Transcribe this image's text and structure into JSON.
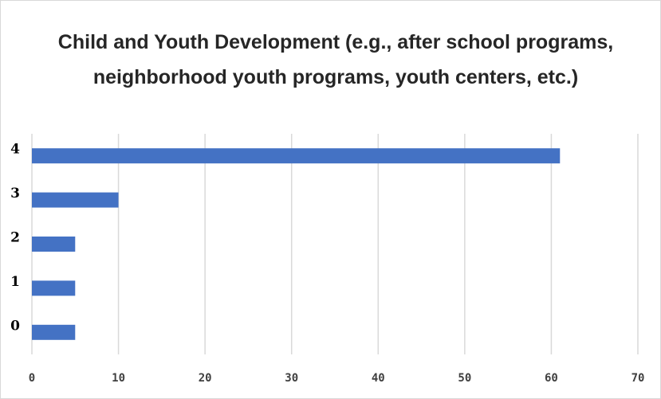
{
  "chart_data": {
    "type": "bar",
    "orientation": "horizontal",
    "title": "Child and Youth Development (e.g., after school programs, neighborhood youth programs, youth centers, etc.)",
    "categories": [
      "0",
      "1",
      "2",
      "3",
      "4"
    ],
    "values": [
      5,
      5,
      5,
      10,
      61
    ],
    "xlabel": "",
    "ylabel": "",
    "xlim": [
      0,
      70
    ],
    "xticks": [
      "0",
      "10",
      "20",
      "30",
      "40",
      "50",
      "60",
      "70"
    ],
    "grid": "vertical",
    "legend": "none",
    "bar_color": "#4472c4",
    "grid_color": "#d9d9d9"
  }
}
